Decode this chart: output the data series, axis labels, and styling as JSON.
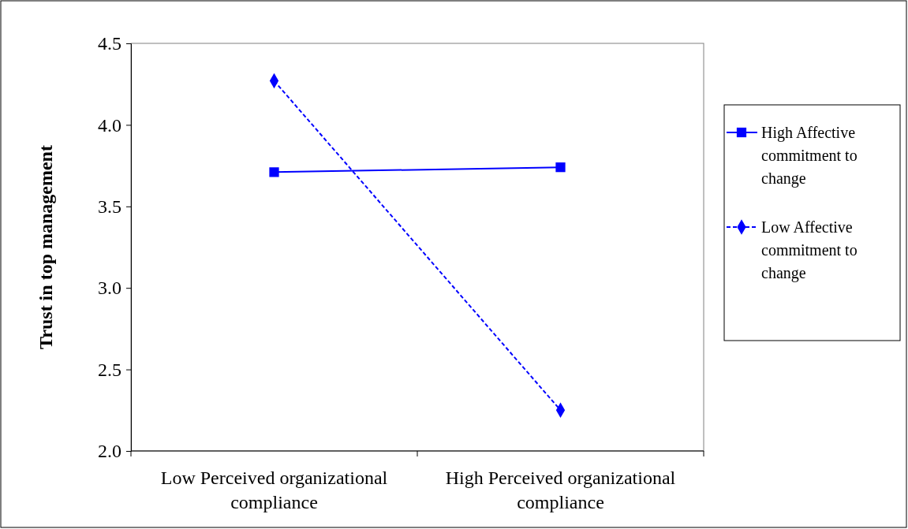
{
  "chart_data": {
    "type": "line",
    "ylabel": "Trust in top management",
    "categories": [
      "Low Perceived organizational compliance",
      "High Perceived organizational compliance"
    ],
    "ylim": [
      2.0,
      4.5
    ],
    "yticks": [
      {
        "value": 2.0,
        "label": "2.0"
      },
      {
        "value": 2.5,
        "label": "2.5"
      },
      {
        "value": 3.0,
        "label": "3.0"
      },
      {
        "value": 3.5,
        "label": "3.5"
      },
      {
        "value": 4.0,
        "label": "4.0"
      },
      {
        "value": 4.5,
        "label": "4.5"
      }
    ],
    "legend": "right",
    "grid": false,
    "series": [
      {
        "name": "High Affective commitment to change",
        "color": "#0000ff",
        "values": [
          3.71,
          3.74
        ],
        "marker": "square",
        "line_style": "solid"
      },
      {
        "name": "Low Affective commitment to change",
        "color": "#0000ff",
        "values": [
          4.27,
          2.25
        ],
        "marker": "diamond",
        "line_style": "dashed"
      }
    ]
  }
}
